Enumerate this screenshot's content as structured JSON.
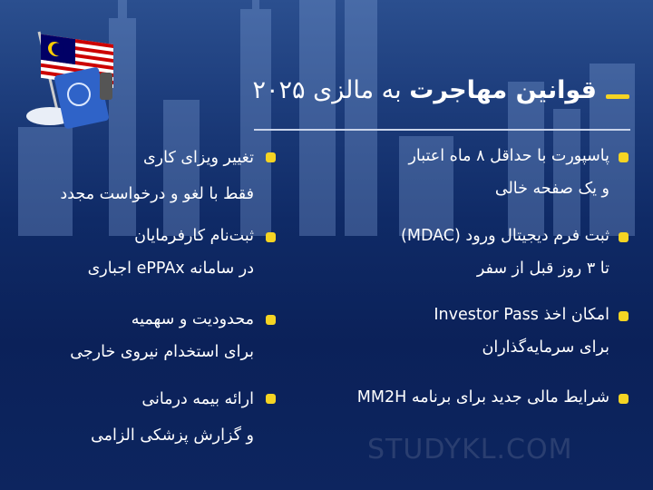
{
  "title": {
    "bold": "قوانین مهاجرت",
    "rest": " به مالزی ۲۰۲۵"
  },
  "right_column": [
    {
      "line1": "پاسپورت با حداقل ۸ ماه اعتبار",
      "line2": "و یک صفحه خالی"
    },
    {
      "line1": "ثبت فرم دیجیتال ورود (MDAC)",
      "line2": "تا ۳ روز قبل از سفر"
    },
    {
      "line1": "امکان اخذ Investor Pass",
      "line2": "برای سرمایه‌گذاران"
    },
    {
      "line1": "شرایط مالی جدید برای برنامه MM2H",
      "line2": ""
    }
  ],
  "left_column": [
    {
      "line1": "تغییر ویزای کاری",
      "line2": "فقط با لغو و درخواست مجدد"
    },
    {
      "line1": "ثبت‌نام کارفرمایان",
      "line2": "در سامانه ePPAx اجباری"
    },
    {
      "line1": "محدودیت و سهمیه",
      "line2": "برای استخدام نیروی خارجی"
    },
    {
      "line1": "ارائه بیمه درمانی",
      "line2": "و گزارش پزشکی الزامی"
    }
  ],
  "watermark": "STUDYKL.COM",
  "colors": {
    "accent": "#f5d423",
    "background": "#0f2a66"
  },
  "icons": [
    "malaysia-flag-icon",
    "passport-icon",
    "cloud-icon"
  ]
}
